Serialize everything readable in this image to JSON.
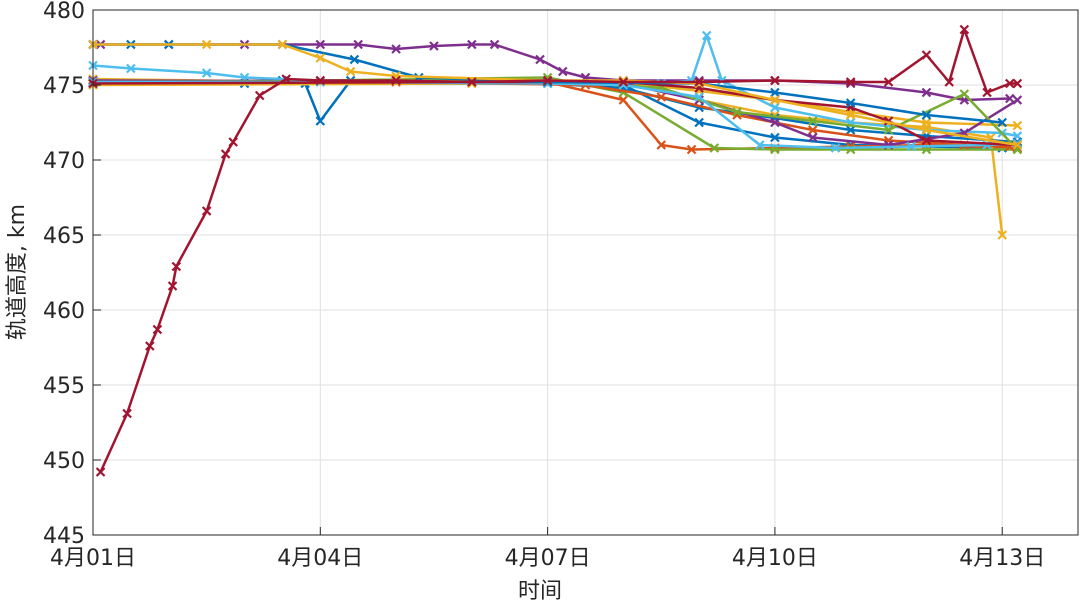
{
  "chart_data": {
    "type": "line",
    "x_label": "时间",
    "y_label": "轨道高度, km",
    "xlim": [
      1,
      14
    ],
    "ylim": [
      445,
      480
    ],
    "xticks": [
      {
        "value": 1,
        "label": "4月01日"
      },
      {
        "value": 4,
        "label": "4月04日"
      },
      {
        "value": 7,
        "label": "4月07日"
      },
      {
        "value": 10,
        "label": "4月10日"
      },
      {
        "value": 13,
        "label": "4月13日"
      }
    ],
    "yticks": [
      445,
      450,
      455,
      460,
      465,
      470,
      475,
      480
    ],
    "grid": true,
    "series": [
      {
        "color": "#0072BD",
        "x": [
          1,
          3.5,
          3.8,
          4,
          4.4,
          5,
          7,
          8,
          9,
          10,
          11,
          12,
          13,
          13.2
        ],
        "values": [
          475.2,
          475.3,
          475.1,
          472.6,
          475.3,
          475.3,
          475.2,
          475.0,
          472.5,
          471.5,
          471.0,
          470.9,
          470.8,
          470.8
        ]
      },
      {
        "color": "#D95319",
        "x": [
          1,
          7,
          8,
          8.5,
          8.9,
          10,
          11,
          12,
          13.2
        ],
        "values": [
          475.3,
          475.2,
          474,
          471,
          470.7,
          470.8,
          470.9,
          471,
          470.8
        ]
      },
      {
        "color": "#EDB120",
        "x": [
          1,
          4,
          8,
          9,
          10,
          11,
          12,
          12.85,
          13
        ],
        "values": [
          475.4,
          475.2,
          475.2,
          474,
          473,
          472.5,
          472.2,
          471.5,
          465
        ]
      },
      {
        "color": "#7E2F8E",
        "x": [
          1,
          1.1,
          2,
          3,
          4,
          4.5,
          5,
          5.5,
          6,
          6.3,
          6.9,
          7.2,
          7.5,
          8,
          9,
          10,
          11,
          12,
          12.5,
          13.1
        ],
        "values": [
          477.7,
          477.7,
          477.7,
          477.7,
          477.7,
          477.7,
          477.4,
          477.6,
          477.7,
          477.7,
          476.7,
          475.9,
          475.5,
          475.3,
          475.3,
          475.3,
          475.1,
          474.5,
          474,
          474.1
        ]
      },
      {
        "color": "#77AC30",
        "x": [
          1,
          7,
          8,
          9.2,
          10,
          11,
          12,
          13.2
        ],
        "values": [
          475.1,
          475.5,
          474.5,
          470.8,
          470.7,
          470.7,
          470.7,
          470.7
        ]
      },
      {
        "color": "#4DBEEE",
        "x": [
          1,
          1.5,
          2.5,
          3,
          4,
          7,
          8.5,
          8.9,
          9.1,
          9.3,
          10,
          11,
          12,
          13,
          13.2
        ],
        "values": [
          476.3,
          476.1,
          475.8,
          475.5,
          475.3,
          475.2,
          475.1,
          475.3,
          478.3,
          475.3,
          473.5,
          472.5,
          472,
          471.8,
          471.6
        ]
      },
      {
        "color": "#0072BD",
        "x": [
          1,
          3,
          7,
          8,
          9,
          10,
          11,
          12,
          13.2
        ],
        "values": [
          475.1,
          475.1,
          475.1,
          474.8,
          473.5,
          472.8,
          472,
          471.6,
          471.2
        ]
      },
      {
        "color": "#D95319",
        "x": [
          1,
          5,
          7.5,
          8.5,
          9.5,
          10.5,
          11.5,
          12.5,
          13.1
        ],
        "values": [
          475.2,
          475.2,
          475,
          474.2,
          473,
          472,
          471.3,
          471,
          470.9
        ]
      },
      {
        "color": "#EDB120",
        "x": [
          1,
          6,
          8,
          9,
          10,
          11,
          12,
          13.2
        ],
        "values": [
          475,
          475.1,
          475.2,
          474.6,
          474,
          473.2,
          472.5,
          472.3
        ]
      },
      {
        "color": "#7E2F8E",
        "x": [
          1,
          7,
          8,
          9,
          10,
          10.5,
          11.5,
          12.5,
          13.2
        ],
        "values": [
          475.3,
          475.2,
          475.1,
          474,
          472.5,
          471.5,
          471,
          471.8,
          474
        ]
      },
      {
        "color": "#77AC30",
        "x": [
          1,
          7,
          8.5,
          9.5,
          10.5,
          11.5,
          12.5,
          13.2
        ],
        "values": [
          475.2,
          475.3,
          474.8,
          473.2,
          472.6,
          472,
          474.4,
          470.7
        ]
      },
      {
        "color": "#4DBEEE",
        "x": [
          1,
          4,
          7,
          8,
          9,
          9.8,
          10.8,
          11.8,
          12.8,
          13.2
        ],
        "values": [
          475.2,
          475.2,
          475.1,
          475,
          474.2,
          471,
          470.8,
          470.9,
          471,
          471.1
        ]
      },
      {
        "color": "#A2142F",
        "x": [
          1,
          6,
          8,
          9,
          10,
          11,
          11.5,
          12,
          13.2
        ],
        "values": [
          475.1,
          475.2,
          475.2,
          474.8,
          474,
          473.5,
          472.6,
          471.3,
          471
        ]
      },
      {
        "color": "#0072BD",
        "x": [
          1,
          1.5,
          2,
          3.5,
          4.45,
          5.3,
          7,
          9,
          10,
          11,
          12,
          13
        ],
        "values": [
          477.7,
          477.7,
          477.7,
          477.7,
          476.7,
          475.5,
          475.2,
          475.1,
          474.5,
          473.8,
          473,
          472.5
        ]
      },
      {
        "color": "#EDB120",
        "x": [
          1,
          2.5,
          3.5,
          4,
          4.4,
          5,
          7,
          8,
          9,
          10,
          11,
          12,
          13.2
        ],
        "values": [
          477.7,
          477.7,
          477.7,
          476.8,
          475.9,
          475.6,
          475.3,
          475.3,
          475.1,
          474,
          473,
          472,
          471
        ]
      },
      {
        "color": "#A2142F",
        "x": [
          1.1,
          1.45,
          1.75,
          1.85,
          2.05,
          2.1,
          2.5,
          2.75,
          2.85,
          3.2,
          3.55,
          4,
          5,
          6,
          7,
          8,
          9,
          10,
          11,
          11.5,
          12,
          12.3,
          12.5,
          12.8,
          13.1,
          13.2
        ],
        "values": [
          449.2,
          453.1,
          457.6,
          458.7,
          461.6,
          462.9,
          466.6,
          470.4,
          471.2,
          474.3,
          475.4,
          475.3,
          475.3,
          475.2,
          475.3,
          475.2,
          475.2,
          475.3,
          475.2,
          475.2,
          477,
          475.2,
          478.7,
          474.5,
          475.1,
          475.1
        ]
      }
    ]
  }
}
